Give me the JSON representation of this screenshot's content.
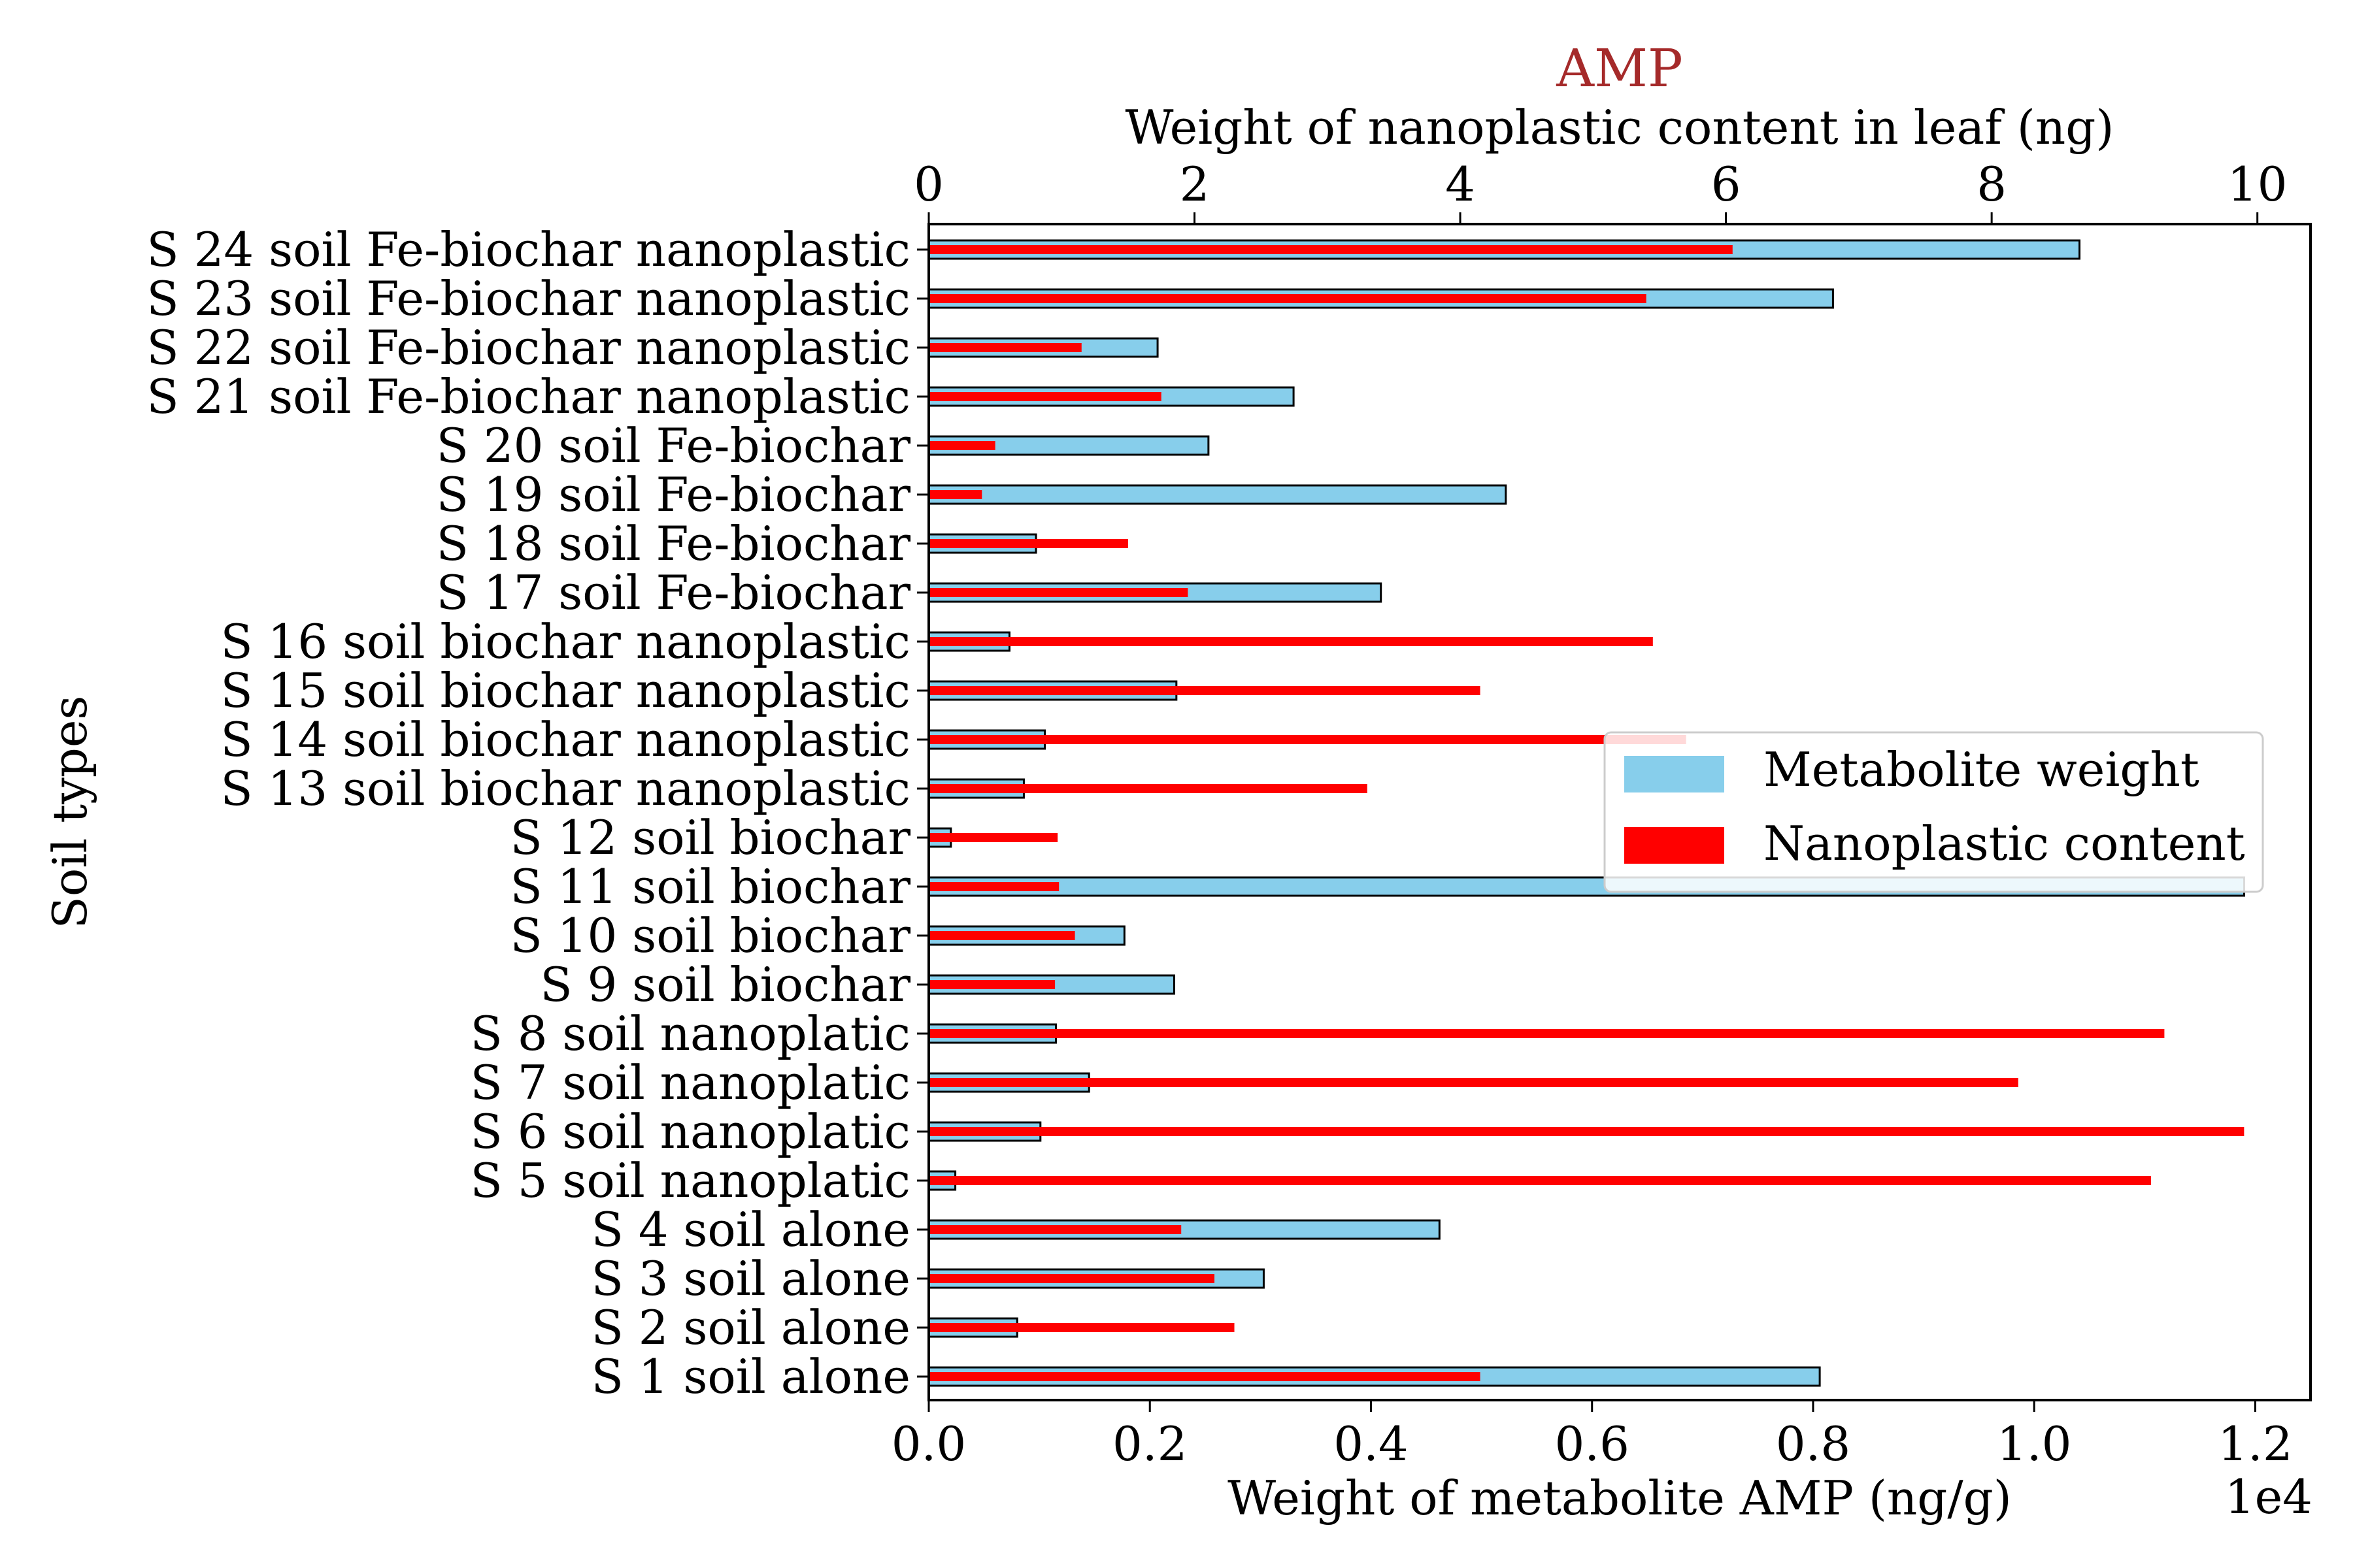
{
  "chart_data": {
    "type": "bar",
    "orientation": "horizontal",
    "title": "AMP",
    "title_color": "#a52a2a",
    "ylabel": "Soil types",
    "xlabel_bottom": "Weight of metabolite AMP (ng/g)",
    "xlabel_top": "Weight of nanoplastic content in leaf (ng)",
    "bottom_axis": {
      "range": [
        0,
        12500
      ],
      "ticks": [
        0,
        2000,
        4000,
        6000,
        8000,
        10000,
        12000
      ],
      "tick_labels": [
        "0.0",
        "0.2",
        "0.4",
        "0.6",
        "0.8",
        "1.0",
        "1.2"
      ],
      "offset_label": "1e4"
    },
    "top_axis": {
      "range": [
        0,
        10.4
      ],
      "ticks": [
        0,
        2,
        4,
        6,
        8,
        10
      ],
      "tick_labels": [
        "0",
        "2",
        "4",
        "6",
        "8",
        "10"
      ]
    },
    "categories": [
      "S 1 soil alone",
      "S 2 soil alone",
      "S 3 soil alone",
      "S 4 soil alone",
      "S 5 soil nanoplatic",
      "S 6 soil nanoplatic",
      "S 7 soil nanoplatic",
      "S 8 soil nanoplatic",
      "S 9 soil biochar",
      "S 10 soil biochar",
      "S 11 soil biochar",
      "S 12 soil biochar",
      "S 13 soil biochar nanoplastic",
      "S 14 soil biochar nanoplastic",
      "S 15 soil biochar nanoplastic",
      "S 16 soil biochar nanoplastic",
      "S 17 soil Fe-biochar",
      "S 18 soil Fe-biochar",
      "S 19 soil Fe-biochar",
      "S 20 soil Fe-biochar",
      "S 21 soil Fe-biochar nanoplastic",
      "S 22 soil Fe-biochar nanoplastic",
      "S 23 soil Fe-biochar nanoplastic",
      "S 24 soil Fe-biochar nanoplastic"
    ],
    "series": [
      {
        "name": "Metabolite weight",
        "axis": "bottom",
        "color": "#87ceeb",
        "values": [
          8060,
          800,
          3030,
          4620,
          240,
          1010,
          1450,
          1150,
          2220,
          1770,
          11900,
          200,
          860,
          1050,
          2240,
          730,
          4090,
          970,
          5220,
          2530,
          3300,
          2070,
          8180,
          10410
        ]
      },
      {
        "name": "Nanoplastic content",
        "axis": "top",
        "color": "#ff0000",
        "values": [
          4.15,
          2.3,
          2.15,
          1.9,
          9.2,
          9.9,
          8.2,
          9.3,
          0.95,
          1.1,
          0.98,
          0.97,
          3.3,
          5.7,
          4.15,
          5.45,
          1.95,
          1.5,
          0.4,
          0.5,
          1.75,
          1.15,
          5.4,
          6.05
        ]
      }
    ],
    "legend": {
      "position": "center-right",
      "entries": [
        "Metabolite weight",
        "Nanoplastic content"
      ]
    },
    "grid": false
  }
}
